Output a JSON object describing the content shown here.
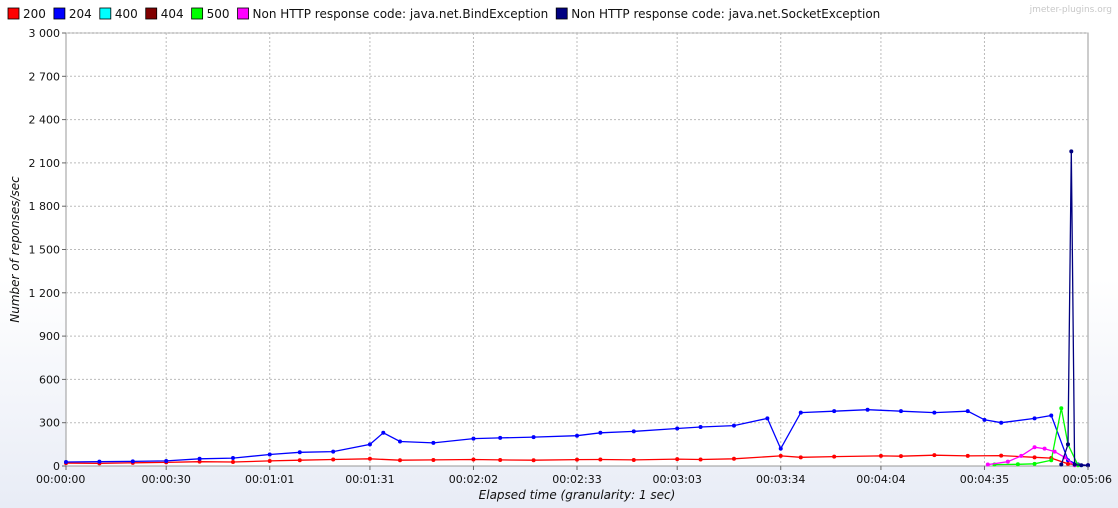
{
  "watermark": "jmeter-plugins.org",
  "chart_data": {
    "type": "line",
    "xlabel": "Elapsed time (granularity: 1 sec)",
    "ylabel": "Number of reponses/sec",
    "xlim": [
      0,
      306
    ],
    "ylim": [
      0,
      3000
    ],
    "x_tick_values": [
      0,
      30,
      61,
      91,
      122,
      153,
      183,
      214,
      244,
      275,
      306
    ],
    "x_tick_labels": [
      "00:00:00",
      "00:00:30",
      "00:01:01",
      "00:01:31",
      "00:02:02",
      "00:02:33",
      "00:03:03",
      "00:03:34",
      "00:04:04",
      "00:04:35",
      "00:05:06"
    ],
    "y_tick_values": [
      0,
      300,
      600,
      900,
      1200,
      1500,
      1800,
      2100,
      2400,
      2700,
      3000
    ],
    "y_tick_labels": [
      "0",
      "300",
      "600",
      "900",
      "1 200",
      "1 500",
      "1 800",
      "2 100",
      "2 400",
      "2 700",
      "3 000"
    ],
    "grid": true,
    "legend_position": "top",
    "series": [
      {
        "name": "200",
        "color": "#ff0000",
        "points": [
          [
            0,
            20
          ],
          [
            10,
            18
          ],
          [
            20,
            22
          ],
          [
            30,
            25
          ],
          [
            40,
            30
          ],
          [
            50,
            28
          ],
          [
            61,
            35
          ],
          [
            70,
            40
          ],
          [
            80,
            45
          ],
          [
            91,
            50
          ],
          [
            100,
            40
          ],
          [
            110,
            42
          ],
          [
            122,
            45
          ],
          [
            130,
            42
          ],
          [
            140,
            40
          ],
          [
            153,
            44
          ],
          [
            160,
            45
          ],
          [
            170,
            42
          ],
          [
            183,
            48
          ],
          [
            190,
            45
          ],
          [
            200,
            50
          ],
          [
            214,
            70
          ],
          [
            220,
            60
          ],
          [
            230,
            65
          ],
          [
            244,
            70
          ],
          [
            250,
            68
          ],
          [
            260,
            75
          ],
          [
            270,
            70
          ],
          [
            280,
            72
          ],
          [
            290,
            60
          ],
          [
            295,
            55
          ],
          [
            300,
            15
          ],
          [
            303,
            10
          ],
          [
            306,
            5
          ]
        ]
      },
      {
        "name": "204",
        "color": "#0000ff",
        "points": [
          [
            0,
            28
          ],
          [
            10,
            30
          ],
          [
            20,
            32
          ],
          [
            30,
            35
          ],
          [
            40,
            50
          ],
          [
            50,
            55
          ],
          [
            61,
            80
          ],
          [
            70,
            95
          ],
          [
            80,
            100
          ],
          [
            91,
            150
          ],
          [
            95,
            230
          ],
          [
            100,
            170
          ],
          [
            110,
            160
          ],
          [
            122,
            190
          ],
          [
            130,
            195
          ],
          [
            140,
            200
          ],
          [
            153,
            210
          ],
          [
            160,
            230
          ],
          [
            170,
            240
          ],
          [
            183,
            260
          ],
          [
            190,
            270
          ],
          [
            200,
            280
          ],
          [
            210,
            330
          ],
          [
            214,
            120
          ],
          [
            220,
            370
          ],
          [
            230,
            380
          ],
          [
            240,
            390
          ],
          [
            250,
            380
          ],
          [
            260,
            370
          ],
          [
            270,
            380
          ],
          [
            275,
            320
          ],
          [
            280,
            300
          ],
          [
            290,
            330
          ],
          [
            295,
            350
          ],
          [
            300,
            40
          ],
          [
            303,
            10
          ],
          [
            306,
            5
          ]
        ]
      },
      {
        "name": "400",
        "color": "#00ffff",
        "points": []
      },
      {
        "name": "404",
        "color": "#800000",
        "points": []
      },
      {
        "name": "500",
        "color": "#00ff00",
        "points": [
          [
            278,
            10
          ],
          [
            285,
            12
          ],
          [
            290,
            15
          ],
          [
            295,
            40
          ],
          [
            298,
            400
          ],
          [
            300,
            150
          ],
          [
            303,
            5
          ]
        ]
      },
      {
        "name": "Non HTTP response code: java.net.BindException",
        "color": "#ff00ff",
        "points": [
          [
            276,
            10
          ],
          [
            282,
            30
          ],
          [
            286,
            70
          ],
          [
            290,
            130
          ],
          [
            293,
            120
          ],
          [
            296,
            100
          ],
          [
            299,
            60
          ],
          [
            302,
            5
          ]
        ]
      },
      {
        "name": "Non HTTP response code: java.net.SocketException",
        "color": "#000080",
        "points": [
          [
            298,
            10
          ],
          [
            300,
            150
          ],
          [
            301,
            2180
          ],
          [
            302,
            10
          ],
          [
            304,
            5
          ],
          [
            306,
            5
          ]
        ]
      }
    ]
  }
}
